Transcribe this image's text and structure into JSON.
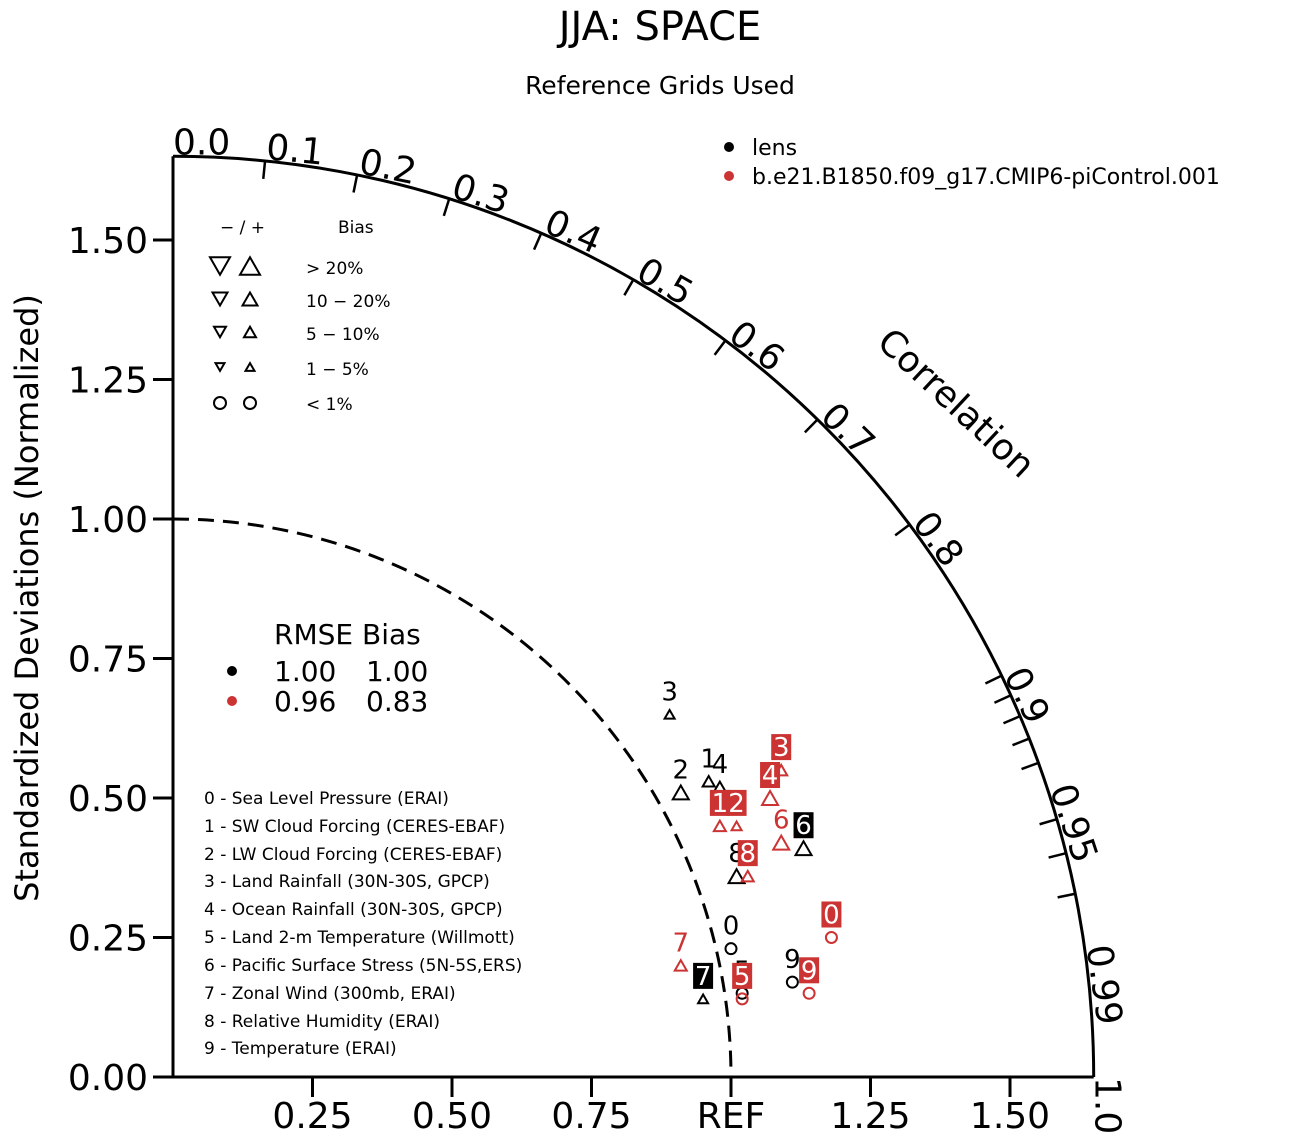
{
  "chart_data": {
    "type": "taylor",
    "title": "JJA: SPACE",
    "subtitle": "Reference Grids Used",
    "ylabel": "Standardized Deviations (Normalized)",
    "correlation_label": "Correlation",
    "ref_label": "REF",
    "std_range": [
      0,
      1.65
    ],
    "y_ticks": [
      "0.00",
      "0.25",
      "0.50",
      "0.75",
      "1.00",
      "1.25",
      "1.50"
    ],
    "x_ticks": [
      "0.25",
      "0.50",
      "0.75",
      "REF",
      "1.25",
      "1.50"
    ],
    "correlation_ticks": [
      "0.0",
      "0.1",
      "0.2",
      "0.3",
      "0.4",
      "0.5",
      "0.6",
      "0.7",
      "0.8",
      "0.9",
      "0.95",
      "0.99",
      "1.0"
    ],
    "legend": {
      "placement": "top-right",
      "entries": [
        {
          "name": "lens",
          "color": "#000000"
        },
        {
          "name": "b.e21.B1850.f09_g17.CMIP6-piControl.001",
          "color": "#cc3333"
        }
      ]
    },
    "bias_key": {
      "header_signs": "− / +",
      "header_label": "Bias",
      "rows": [
        "> 20%",
        "10 − 20%",
        "5 − 10%",
        "1 − 5%",
        "< 1%"
      ]
    },
    "rmse_table": {
      "header": "RMSE Bias",
      "rows": [
        {
          "rmse": "1.00",
          "bias": "1.00",
          "color": "#000000"
        },
        {
          "rmse": "0.96",
          "bias": "0.83",
          "color": "#cc3333"
        }
      ]
    },
    "variables": [
      "0 - Sea Level Pressure (ERAI)",
      "1 - SW Cloud Forcing (CERES-EBAF)",
      "2 - LW Cloud Forcing (CERES-EBAF)",
      "3 - Land Rainfall (30N-30S, GPCP)",
      "4 - Ocean Rainfall (30N-30S, GPCP)",
      "5 - Land 2-m Temperature (Willmott)",
      "6 - Pacific Surface Stress (5N-5S,ERS)",
      "7 - Zonal Wind (300mb, ERAI)",
      "8 - Relative Humidity (ERAI)",
      "9 - Temperature (ERAI)"
    ],
    "series": [
      {
        "name": "lens",
        "color": "#000000",
        "points": [
          {
            "id": "0",
            "x": 1.0,
            "y": 0.23,
            "bias": "circle",
            "boxed": false
          },
          {
            "id": "1",
            "x": 0.96,
            "y": 0.53,
            "bias": "up-small",
            "boxed": false
          },
          {
            "id": "2",
            "x": 0.91,
            "y": 0.51,
            "bias": "up-medium",
            "boxed": false
          },
          {
            "id": "3",
            "x": 0.89,
            "y": 0.65,
            "bias": "up-tiny",
            "boxed": false
          },
          {
            "id": "4",
            "x": 0.98,
            "y": 0.52,
            "bias": "up-small",
            "boxed": false
          },
          {
            "id": "5",
            "x": 1.02,
            "y": 0.15,
            "bias": "circle",
            "boxed": false
          },
          {
            "id": "6",
            "x": 1.13,
            "y": 0.41,
            "bias": "up-medium",
            "boxed": true
          },
          {
            "id": "7",
            "x": 0.95,
            "y": 0.14,
            "bias": "up-tiny",
            "boxed": true
          },
          {
            "id": "8",
            "x": 1.01,
            "y": 0.36,
            "bias": "up-medium",
            "boxed": false
          },
          {
            "id": "9",
            "x": 1.11,
            "y": 0.17,
            "bias": "circle",
            "boxed": false
          }
        ]
      },
      {
        "name": "b.e21.B1850.f09_g17.CMIP6-piControl.001",
        "color": "#cc3333",
        "points": [
          {
            "id": "0",
            "x": 1.18,
            "y": 0.25,
            "bias": "circle",
            "boxed": true
          },
          {
            "id": "1",
            "x": 0.98,
            "y": 0.45,
            "bias": "up-small",
            "boxed": true
          },
          {
            "id": "2",
            "x": 1.01,
            "y": 0.45,
            "bias": "up-tiny",
            "boxed": true
          },
          {
            "id": "3",
            "x": 1.09,
            "y": 0.55,
            "bias": "up-small",
            "boxed": true
          },
          {
            "id": "4",
            "x": 1.07,
            "y": 0.5,
            "bias": "up-medium",
            "boxed": true
          },
          {
            "id": "5",
            "x": 1.02,
            "y": 0.14,
            "bias": "circle",
            "boxed": true
          },
          {
            "id": "6",
            "x": 1.09,
            "y": 0.42,
            "bias": "up-medium",
            "boxed": false
          },
          {
            "id": "7",
            "x": 0.91,
            "y": 0.2,
            "bias": "up-small",
            "boxed": false
          },
          {
            "id": "8",
            "x": 1.03,
            "y": 0.36,
            "bias": "up-small",
            "boxed": true
          },
          {
            "id": "9",
            "x": 1.14,
            "y": 0.15,
            "bias": "circle",
            "boxed": true
          }
        ]
      }
    ]
  }
}
